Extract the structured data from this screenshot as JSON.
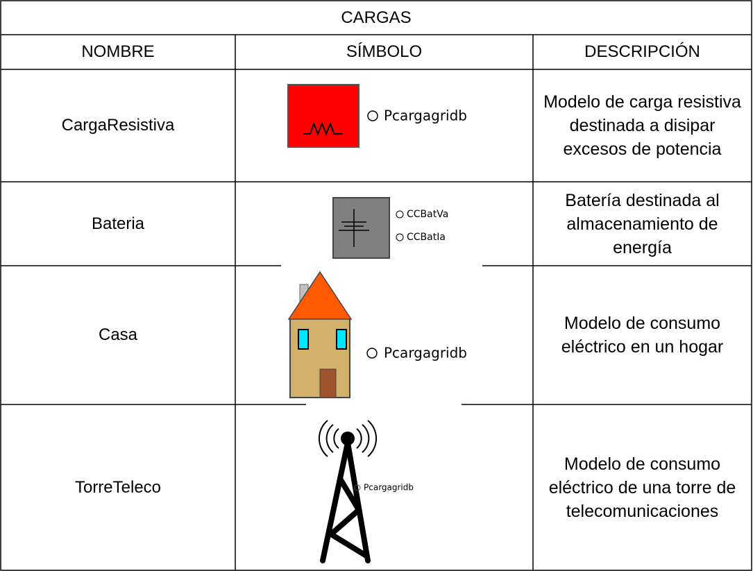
{
  "table": {
    "title": "CARGAS",
    "header": [
      "NOMBRE",
      "SÍMBOLO",
      "DESCRIPCIÓN"
    ],
    "rows": [
      {
        "name": "CargaResistiva",
        "symbol_labels": [
          "Pcargagridb"
        ],
        "description": "Modelo de carga resistiva destinada a disipar excesos de potencia"
      },
      {
        "name": "Bateria",
        "symbol_labels": [
          "CCBatVa",
          "CCBatIa"
        ],
        "description": "Batería destinada al almacenamiento de energía"
      },
      {
        "name": "Casa",
        "symbol_labels": [
          "Pcargagridb"
        ],
        "description": "Modelo de consumo eléctrico en un hogar"
      },
      {
        "name": "TorreTeleco",
        "symbol_labels": [
          "Pcargagridb"
        ],
        "description": "Modelo de consumo eléctrico de una torre de telecomunicaciones"
      }
    ]
  }
}
